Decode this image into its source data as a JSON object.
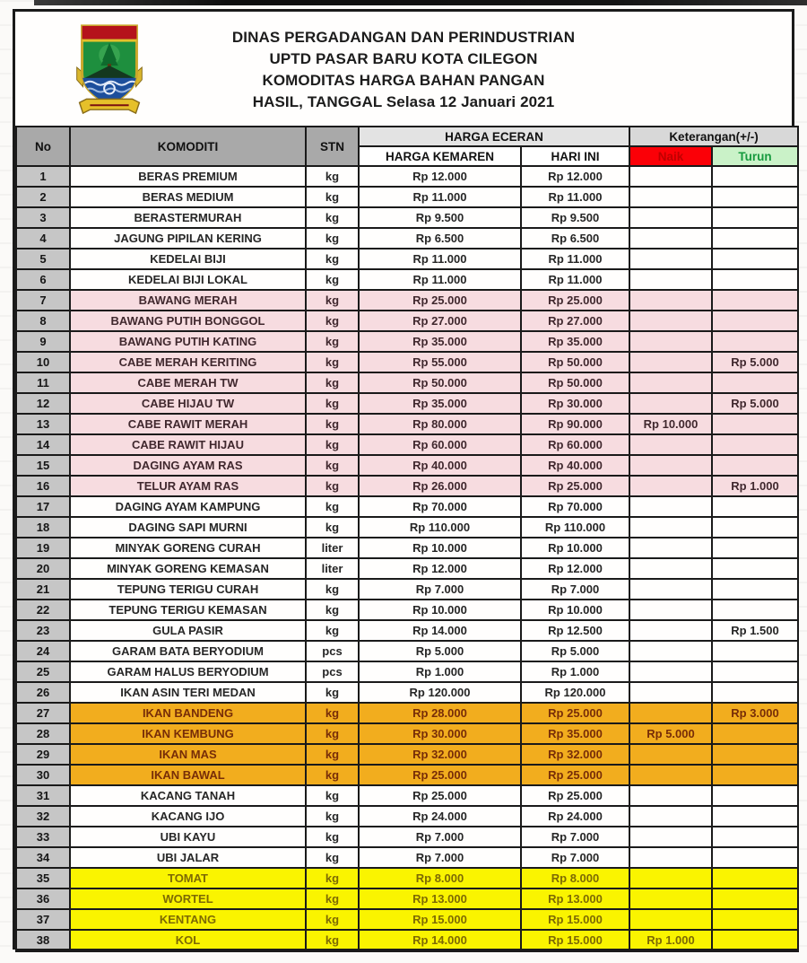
{
  "header": {
    "title_lines": [
      "DINAS PERGADANGAN DAN PERINDUSTRIAN",
      "UPTD PASAR BARU KOTA CILEGON",
      "KOMODITAS HARGA BAHAN PANGAN",
      "HASIL, TANGGAL Selasa 12 Januari 2021"
    ],
    "logo": "cilegon-city-crest"
  },
  "colors": {
    "border": "#1a1a1a",
    "head_dark": "#a9a9a9",
    "head_light": "#e3e3e3",
    "head_ket": "#d8d8d8",
    "nocell": "#c6c6c6",
    "red": "#fb0007",
    "red_text": "#c00000",
    "green_bg": "#caf2c8",
    "green_text": "#169a3e",
    "pink": "#f7dce0",
    "orange": "#f2ad1e",
    "yellow": "#faf400"
  },
  "table": {
    "headers": {
      "no": "No",
      "komoditi": "KOMODITI",
      "stn": "STN",
      "harga_eceran": "HARGA ECERAN",
      "harga_kemaren": "HARGA KEMAREN",
      "hari_ini": "HARI INI",
      "keterangan": "Keterangan(+/-)",
      "naik": "Naik",
      "turun": "Turun"
    },
    "rows": [
      {
        "no": "1",
        "name": "BERAS PREMIUM",
        "unit": "kg",
        "yesterday": "Rp 12.000",
        "today": "Rp 12.000",
        "naik": "",
        "turun": "",
        "theme": "white"
      },
      {
        "no": "2",
        "name": "BERAS MEDIUM",
        "unit": "kg",
        "yesterday": "Rp 11.000",
        "today": "Rp 11.000",
        "naik": "",
        "turun": "",
        "theme": "white"
      },
      {
        "no": "3",
        "name": "BERASTERMURAH",
        "unit": "kg",
        "yesterday": "Rp 9.500",
        "today": "Rp 9.500",
        "naik": "",
        "turun": "",
        "theme": "white"
      },
      {
        "no": "4",
        "name": "JAGUNG PIPILAN KERING",
        "unit": "kg",
        "yesterday": "Rp 6.500",
        "today": "Rp 6.500",
        "naik": "",
        "turun": "",
        "theme": "white"
      },
      {
        "no": "5",
        "name": "KEDELAI BIJI",
        "unit": "kg",
        "yesterday": "Rp 11.000",
        "today": "Rp 11.000",
        "naik": "",
        "turun": "",
        "theme": "white"
      },
      {
        "no": "6",
        "name": "KEDELAI BIJI LOKAL",
        "unit": "kg",
        "yesterday": "Rp 11.000",
        "today": "Rp 11.000",
        "naik": "",
        "turun": "",
        "theme": "white"
      },
      {
        "no": "7",
        "name": "BAWANG MERAH",
        "unit": "kg",
        "yesterday": "Rp 25.000",
        "today": "Rp 25.000",
        "naik": "",
        "turun": "",
        "theme": "pink"
      },
      {
        "no": "8",
        "name": "BAWANG PUTIH BONGGOL",
        "unit": "kg",
        "yesterday": "Rp 27.000",
        "today": "Rp 27.000",
        "naik": "",
        "turun": "",
        "theme": "pink"
      },
      {
        "no": "9",
        "name": "BAWANG PUTIH KATING",
        "unit": "kg",
        "yesterday": "Rp 35.000",
        "today": "Rp 35.000",
        "naik": "",
        "turun": "",
        "theme": "pink"
      },
      {
        "no": "10",
        "name": "CABE MERAH KERITING",
        "unit": "kg",
        "yesterday": "Rp 55.000",
        "today": "Rp 50.000",
        "naik": "",
        "turun": "Rp 5.000",
        "theme": "pink"
      },
      {
        "no": "11",
        "name": "CABE MERAH TW",
        "unit": "kg",
        "yesterday": "Rp 50.000",
        "today": "Rp 50.000",
        "naik": "",
        "turun": "",
        "theme": "pink"
      },
      {
        "no": "12",
        "name": "CABE HIJAU TW",
        "unit": "kg",
        "yesterday": "Rp 35.000",
        "today": "Rp 30.000",
        "naik": "",
        "turun": "Rp 5.000",
        "theme": "pink"
      },
      {
        "no": "13",
        "name": "CABE RAWIT MERAH",
        "unit": "kg",
        "yesterday": "Rp 80.000",
        "today": "Rp 90.000",
        "naik": "Rp 10.000",
        "turun": "",
        "theme": "pink"
      },
      {
        "no": "14",
        "name": "CABE RAWIT HIJAU",
        "unit": "kg",
        "yesterday": "Rp 60.000",
        "today": "Rp 60.000",
        "naik": "",
        "turun": "",
        "theme": "pink"
      },
      {
        "no": "15",
        "name": "DAGING AYAM RAS",
        "unit": "kg",
        "yesterday": "Rp 40.000",
        "today": "Rp 40.000",
        "naik": "",
        "turun": "",
        "theme": "pink"
      },
      {
        "no": "16",
        "name": "TELUR AYAM RAS",
        "unit": "kg",
        "yesterday": "Rp 26.000",
        "today": "Rp 25.000",
        "naik": "",
        "turun": "Rp 1.000",
        "theme": "pink"
      },
      {
        "no": "17",
        "name": "DAGING AYAM KAMPUNG",
        "unit": "kg",
        "yesterday": "Rp 70.000",
        "today": "Rp 70.000",
        "naik": "",
        "turun": "",
        "theme": "white"
      },
      {
        "no": "18",
        "name": "DAGING SAPI MURNI",
        "unit": "kg",
        "yesterday": "Rp 110.000",
        "today": "Rp 110.000",
        "naik": "",
        "turun": "",
        "theme": "white"
      },
      {
        "no": "19",
        "name": "MINYAK GORENG CURAH",
        "unit": "liter",
        "yesterday": "Rp 10.000",
        "today": "Rp 10.000",
        "naik": "",
        "turun": "",
        "theme": "white"
      },
      {
        "no": "20",
        "name": "MINYAK GORENG KEMASAN",
        "unit": "liter",
        "yesterday": "Rp 12.000",
        "today": "Rp 12.000",
        "naik": "",
        "turun": "",
        "theme": "white"
      },
      {
        "no": "21",
        "name": "TEPUNG TERIGU CURAH",
        "unit": "kg",
        "yesterday": "Rp 7.000",
        "today": "Rp 7.000",
        "naik": "",
        "turun": "",
        "theme": "white"
      },
      {
        "no": "22",
        "name": "TEPUNG TERIGU KEMASAN",
        "unit": "kg",
        "yesterday": "Rp 10.000",
        "today": "Rp 10.000",
        "naik": "",
        "turun": "",
        "theme": "white"
      },
      {
        "no": "23",
        "name": "GULA PASIR",
        "unit": "kg",
        "yesterday": "Rp 14.000",
        "today": "Rp 12.500",
        "naik": "",
        "turun": "Rp 1.500",
        "theme": "white"
      },
      {
        "no": "24",
        "name": "GARAM BATA BERYODIUM",
        "unit": "pcs",
        "yesterday": "Rp 5.000",
        "today": "Rp 5.000",
        "naik": "",
        "turun": "",
        "theme": "white"
      },
      {
        "no": "25",
        "name": "GARAM HALUS BERYODIUM",
        "unit": "pcs",
        "yesterday": "Rp 1.000",
        "today": "Rp 1.000",
        "naik": "",
        "turun": "",
        "theme": "white"
      },
      {
        "no": "26",
        "name": "IKAN ASIN TERI MEDAN",
        "unit": "kg",
        "yesterday": "Rp 120.000",
        "today": "Rp 120.000",
        "naik": "",
        "turun": "",
        "theme": "white"
      },
      {
        "no": "27",
        "name": "IKAN BANDENG",
        "unit": "kg",
        "yesterday": "Rp 28.000",
        "today": "Rp 25.000",
        "naik": "",
        "turun": "Rp 3.000",
        "theme": "orange"
      },
      {
        "no": "28",
        "name": "IKAN KEMBUNG",
        "unit": "kg",
        "yesterday": "Rp 30.000",
        "today": "Rp 35.000",
        "naik": "Rp 5.000",
        "turun": "",
        "theme": "orange"
      },
      {
        "no": "29",
        "name": "IKAN MAS",
        "unit": "kg",
        "yesterday": "Rp 32.000",
        "today": "Rp 32.000",
        "naik": "",
        "turun": "",
        "theme": "orange"
      },
      {
        "no": "30",
        "name": "IKAN BAWAL",
        "unit": "kg",
        "yesterday": "Rp 25.000",
        "today": "Rp 25.000",
        "naik": "",
        "turun": "",
        "theme": "orange"
      },
      {
        "no": "31",
        "name": "KACANG TANAH",
        "unit": "kg",
        "yesterday": "Rp 25.000",
        "today": "Rp 25.000",
        "naik": "",
        "turun": "",
        "theme": "white"
      },
      {
        "no": "32",
        "name": "KACANG IJO",
        "unit": "kg",
        "yesterday": "Rp 24.000",
        "today": "Rp 24.000",
        "naik": "",
        "turun": "",
        "theme": "white"
      },
      {
        "no": "33",
        "name": "UBI KAYU",
        "unit": "kg",
        "yesterday": "Rp 7.000",
        "today": "Rp 7.000",
        "naik": "",
        "turun": "",
        "theme": "white"
      },
      {
        "no": "34",
        "name": "UBI JALAR",
        "unit": "kg",
        "yesterday": "Rp 7.000",
        "today": "Rp 7.000",
        "naik": "",
        "turun": "",
        "theme": "white"
      },
      {
        "no": "35",
        "name": "TOMAT",
        "unit": "kg",
        "yesterday": "Rp 8.000",
        "today": "Rp 8.000",
        "naik": "",
        "turun": "",
        "theme": "yellow"
      },
      {
        "no": "36",
        "name": "WORTEL",
        "unit": "kg",
        "yesterday": "Rp 13.000",
        "today": "Rp 13.000",
        "naik": "",
        "turun": "",
        "theme": "yellow"
      },
      {
        "no": "37",
        "name": "KENTANG",
        "unit": "kg",
        "yesterday": "Rp 15.000",
        "today": "Rp 15.000",
        "naik": "",
        "turun": "",
        "theme": "yellow"
      },
      {
        "no": "38",
        "name": "KOL",
        "unit": "kg",
        "yesterday": "Rp 14.000",
        "today": "Rp 15.000",
        "naik": "Rp 1.000",
        "turun": "",
        "theme": "yellow"
      }
    ]
  }
}
